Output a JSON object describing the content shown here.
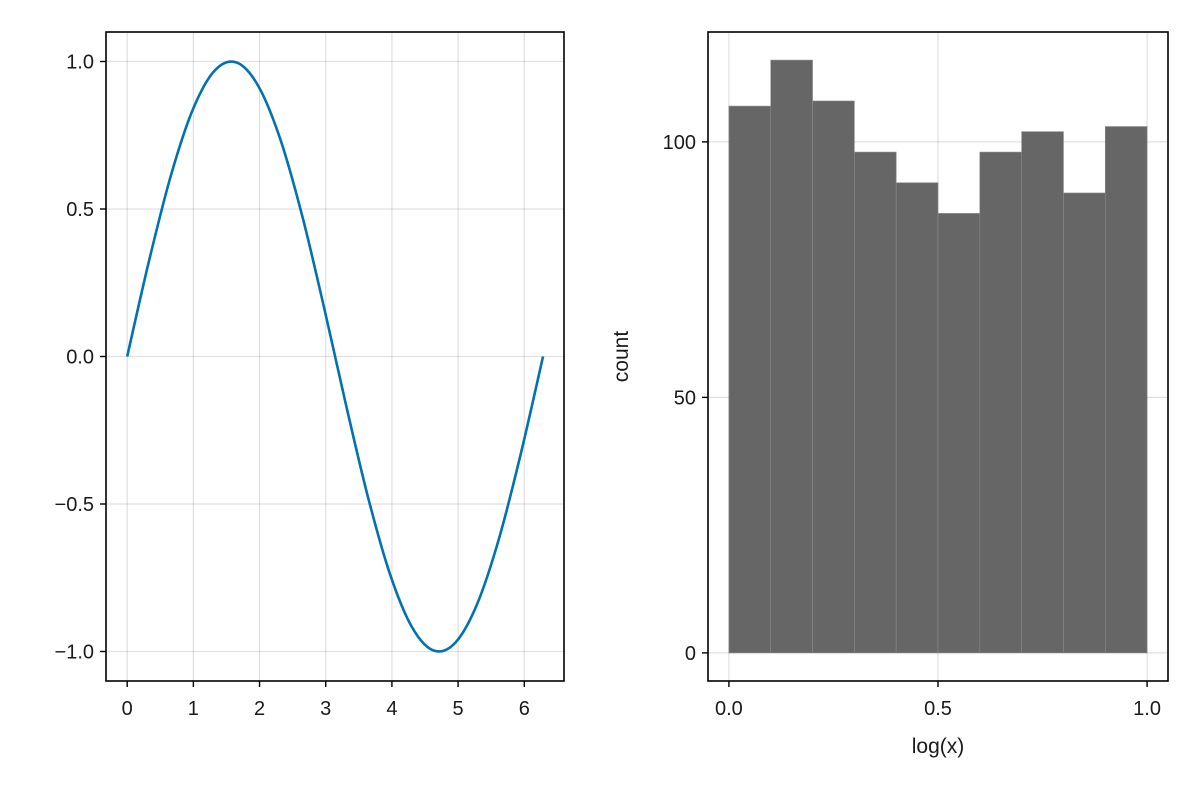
{
  "chart_data": [
    {
      "type": "line",
      "title": "",
      "xlabel": "",
      "ylabel": "",
      "xlim": [
        -0.32,
        6.6
      ],
      "ylim": [
        -1.1,
        1.1
      ],
      "xticks": [
        0,
        1,
        2,
        3,
        4,
        5,
        6
      ],
      "yticks": [
        -1.0,
        -0.5,
        0.0,
        0.5,
        1.0
      ],
      "xtick_labels": [
        "0",
        "1",
        "2",
        "3",
        "4",
        "5",
        "6"
      ],
      "ytick_labels": [
        "−1.0",
        "−0.5",
        "0.0",
        "0.5",
        "1.0"
      ],
      "grid": true,
      "series": [
        {
          "color": "#0072b2",
          "x": [
            0,
            0.3307,
            0.6614,
            0.9921,
            1.3228,
            1.6535,
            1.9842,
            2.3149,
            2.6456,
            2.9762,
            3.3069,
            3.6376,
            3.9683,
            4.299,
            4.6297,
            4.9604,
            5.2911,
            5.6218,
            5.9525,
            6.2832
          ],
          "y": [
            0,
            0.3247,
            0.6142,
            0.8372,
            0.9694,
            0.9966,
            0.9158,
            0.7357,
            0.4759,
            0.1646,
            -0.1646,
            -0.4759,
            -0.7357,
            -0.9158,
            -0.9966,
            -0.9694,
            -0.8372,
            -0.6142,
            -0.3247,
            0
          ]
        }
      ]
    },
    {
      "type": "bar",
      "title": "",
      "xlabel": "log(x)",
      "ylabel": "count",
      "xlim": [
        -0.05,
        1.05
      ],
      "ylim": [
        -5.5,
        121.5
      ],
      "xticks": [
        0.0,
        0.5,
        1.0
      ],
      "yticks": [
        0,
        50,
        100
      ],
      "xtick_labels": [
        "0.0",
        "0.5",
        "1.0"
      ],
      "ytick_labels": [
        "0",
        "50",
        "100"
      ],
      "grid": true,
      "bar_color": "#666666",
      "bins": [
        [
          0.0,
          0.1
        ],
        [
          0.1,
          0.2
        ],
        [
          0.2,
          0.3
        ],
        [
          0.3,
          0.4
        ],
        [
          0.4,
          0.5
        ],
        [
          0.5,
          0.6
        ],
        [
          0.6,
          0.7
        ],
        [
          0.7,
          0.8
        ],
        [
          0.8,
          0.9
        ],
        [
          0.9,
          1.0
        ]
      ],
      "values": [
        107,
        116,
        108,
        98,
        92,
        86,
        98,
        102,
        90,
        103
      ]
    }
  ]
}
